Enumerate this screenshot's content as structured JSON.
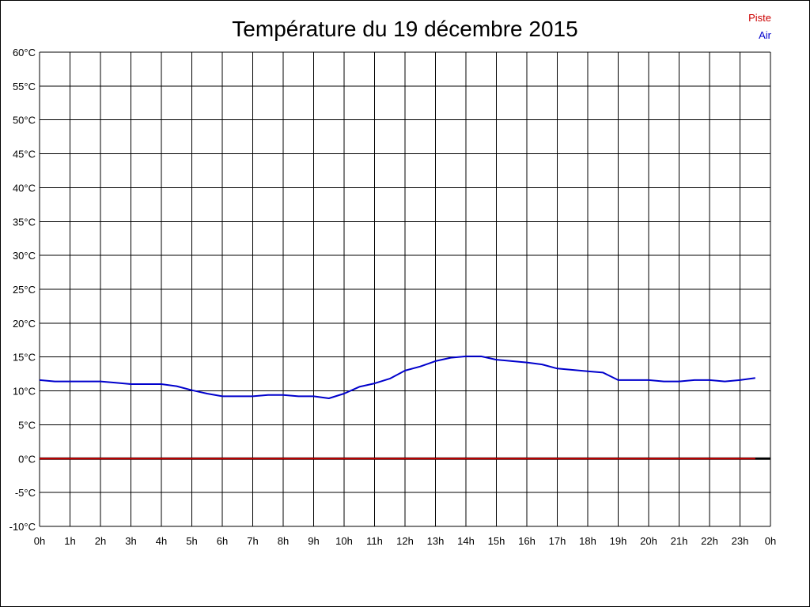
{
  "chart_data": {
    "type": "line",
    "title": "Température du 19 décembre 2015",
    "xlabel": "",
    "ylabel": "",
    "ylim": [
      -10,
      60
    ],
    "y_ticks": [
      "-10°C",
      "-5°C",
      "0°C",
      "5°C",
      "10°C",
      "15°C",
      "20°C",
      "25°C",
      "30°C",
      "35°C",
      "40°C",
      "45°C",
      "50°C",
      "55°C",
      "60°C"
    ],
    "x_ticks": [
      "0h",
      "1h",
      "2h",
      "3h",
      "4h",
      "5h",
      "6h",
      "7h",
      "8h",
      "9h",
      "10h",
      "11h",
      "12h",
      "13h",
      "14h",
      "15h",
      "16h",
      "17h",
      "18h",
      "19h",
      "20h",
      "21h",
      "22h",
      "23h",
      "0h"
    ],
    "grid": true,
    "legend_position": "top-right",
    "series": [
      {
        "name": "Piste",
        "color": "#cc0000",
        "x": [
          0,
          23.5
        ],
        "y": [
          0,
          0
        ]
      },
      {
        "name": "Air",
        "color": "#0000cc",
        "x": [
          0,
          0.5,
          1,
          1.5,
          2,
          2.5,
          3,
          3.5,
          4,
          4.5,
          5,
          5.5,
          6,
          6.5,
          7,
          7.5,
          8,
          8.5,
          9,
          9.5,
          10,
          10.5,
          11,
          11.5,
          12,
          12.5,
          13,
          13.5,
          14,
          14.5,
          15,
          15.5,
          16,
          16.5,
          17,
          17.5,
          18,
          18.5,
          19,
          19.5,
          20,
          20.5,
          21,
          21.5,
          22,
          22.5,
          23,
          23.5
        ],
        "y": [
          11.6,
          11.4,
          11.4,
          11.4,
          11.4,
          11.2,
          11.0,
          11.0,
          11.0,
          10.7,
          10.1,
          9.6,
          9.2,
          9.2,
          9.2,
          9.4,
          9.4,
          9.2,
          9.2,
          8.9,
          9.6,
          10.6,
          11.1,
          11.8,
          13.0,
          13.6,
          14.4,
          14.9,
          15.1,
          15.1,
          14.6,
          14.4,
          14.2,
          13.9,
          13.3,
          13.1,
          12.9,
          12.7,
          11.6,
          11.6,
          11.6,
          11.4,
          11.4,
          11.6,
          11.6,
          11.4,
          11.6,
          11.9
        ]
      }
    ]
  }
}
